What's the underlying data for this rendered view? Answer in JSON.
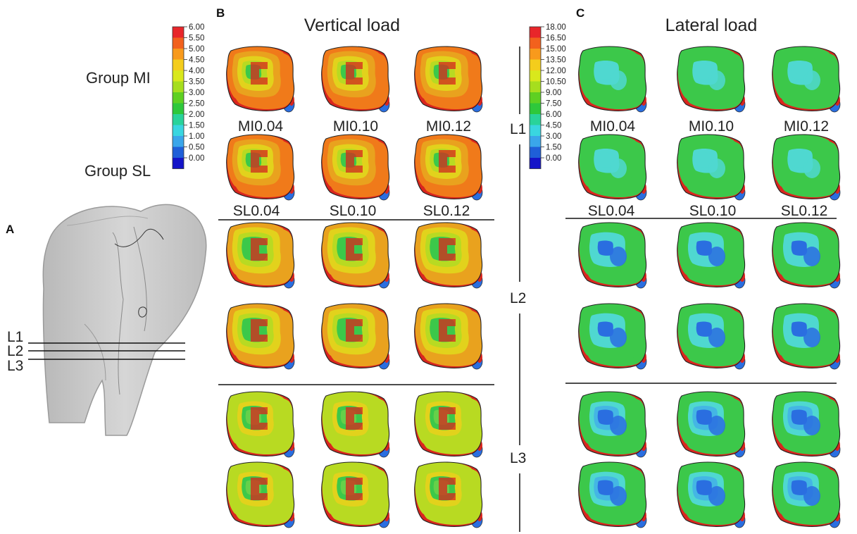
{
  "panels": {
    "A": "A",
    "B": "B",
    "C": "C"
  },
  "headers": {
    "vertical": "Vertical load",
    "lateral": "Lateral load"
  },
  "groups": {
    "mi": "Group MI",
    "sl": "Group SL"
  },
  "levels": [
    "L1",
    "L2",
    "L3"
  ],
  "tooth_levels": [
    "L1",
    "L2",
    "L3"
  ],
  "vertical_labels": {
    "mi": [
      "MI0.04",
      "MI0.10",
      "MI0.12"
    ],
    "sl": [
      "SL0.04",
      "SL0.10",
      "SL0.12"
    ]
  },
  "lateral_labels": {
    "mi": [
      "MI0.04",
      "MI0.10",
      "MI0.12"
    ],
    "sl": [
      "SL0.04",
      "SL0.10",
      "SL0.12"
    ]
  },
  "scale_vertical": {
    "ticks": [
      "6.00",
      "5.50",
      "5.00",
      "4.50",
      "4.00",
      "3.50",
      "3.00",
      "2.50",
      "2.00",
      "1.50",
      "1.00",
      "0.50",
      "0.00"
    ],
    "colors": [
      "#e8262a",
      "#f2611d",
      "#f89a1c",
      "#f4cd1c",
      "#d9e81c",
      "#a6de1e",
      "#5ed022",
      "#2ec83b",
      "#29d39a",
      "#39d6e0",
      "#3aa6ea",
      "#1f5fd8",
      "#1414c8"
    ]
  },
  "scale_lateral": {
    "ticks": [
      "18.00",
      "16.50",
      "15.00",
      "13.50",
      "12.00",
      "10.50",
      "9.00",
      "7.50",
      "6.00",
      "4.50",
      "3.00",
      "1.50",
      "0.00"
    ],
    "colors": [
      "#e8262a",
      "#f2611d",
      "#f89a1c",
      "#f4cd1c",
      "#d9e81c",
      "#a6de1e",
      "#5ed022",
      "#2ec83b",
      "#29d39a",
      "#39d6e0",
      "#3aa6ea",
      "#1f5fd8",
      "#1414c8"
    ]
  },
  "colors": {
    "red": "#d9261e",
    "orange": "#f07a1a",
    "amber": "#e9a21e",
    "yellow": "#e2d21c",
    "yellowgreen": "#b8da22",
    "green": "#3cc84a",
    "lightgreen": "#66d04a",
    "cyan": "#4fd8d0",
    "lightblue": "#44b6e4",
    "blue": "#2a6ee0",
    "tooth": "#c8c8c8"
  }
}
